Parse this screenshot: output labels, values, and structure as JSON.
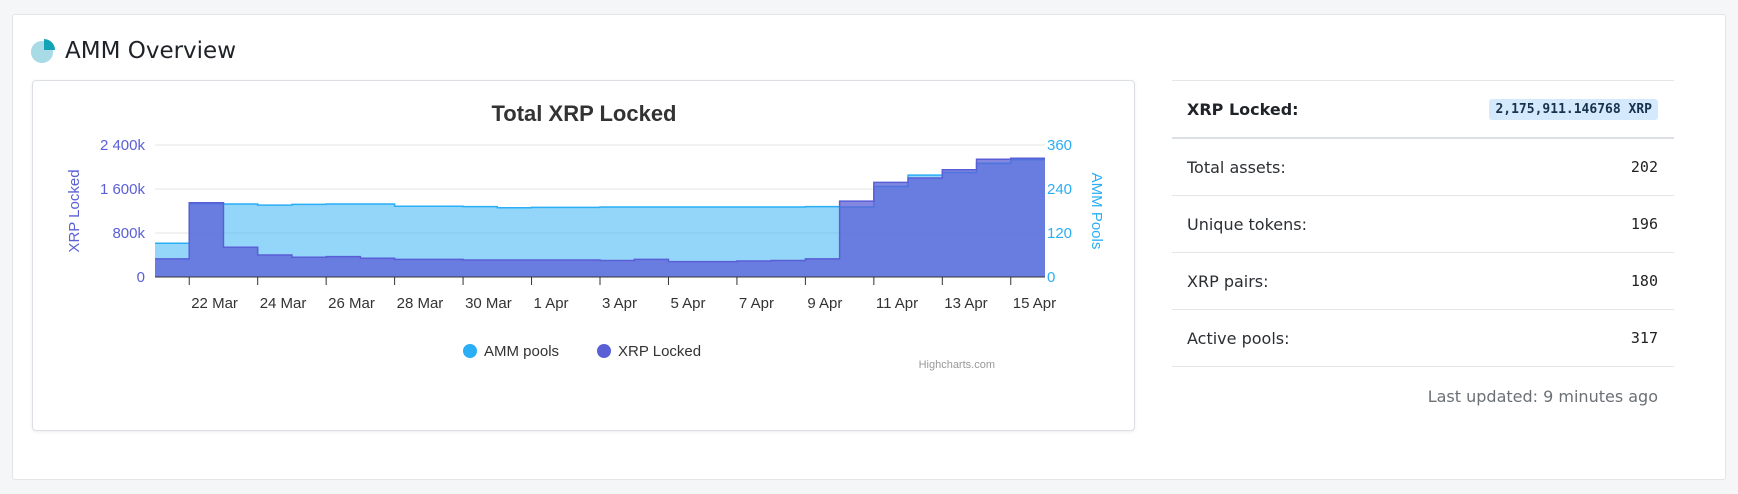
{
  "header": {
    "title": "AMM Overview",
    "icon": "pie-chart-icon"
  },
  "stats": [
    {
      "label": "XRP Locked:",
      "value": "2,175,911.146768 XRP",
      "highlight": true
    },
    {
      "label": "Total assets:",
      "value": "202"
    },
    {
      "label": "Unique tokens:",
      "value": "196"
    },
    {
      "label": "XRP pairs:",
      "value": "180"
    },
    {
      "label": "Active pools:",
      "value": "317"
    }
  ],
  "last_updated": "Last updated: 9 minutes ago",
  "credits": "Highcharts.com",
  "colors": {
    "xrp_locked": "#5a5fd6",
    "amm_pools": "#2aaef5",
    "badge_bg": "#d4e9fb"
  },
  "chart_data": {
    "type": "area",
    "step": true,
    "title": "Total XRP Locked",
    "x": [
      "21 Mar",
      "22 Mar",
      "23 Mar",
      "24 Mar",
      "25 Mar",
      "26 Mar",
      "27 Mar",
      "28 Mar",
      "29 Mar",
      "30 Mar",
      "31 Mar",
      "1 Apr",
      "2 Apr",
      "3 Apr",
      "4 Apr",
      "5 Apr",
      "6 Apr",
      "7 Apr",
      "8 Apr",
      "9 Apr",
      "10 Apr",
      "11 Apr",
      "12 Apr",
      "13 Apr",
      "14 Apr",
      "15 Apr"
    ],
    "x_tick_labels": [
      "22 Mar",
      "24 Mar",
      "26 Mar",
      "28 Mar",
      "30 Mar",
      "1 Apr",
      "3 Apr",
      "5 Apr",
      "7 Apr",
      "9 Apr",
      "11 Apr",
      "13 Apr",
      "15 Apr"
    ],
    "y_axes": [
      {
        "label": "XRP Locked",
        "ticks": [
          "0",
          "800k",
          "1 600k",
          "2 400k"
        ],
        "range": [
          0,
          2400000
        ],
        "color": "#5a5fd6",
        "position": "left"
      },
      {
        "label": "AMM Pools",
        "ticks": [
          "0",
          "120",
          "240",
          "360"
        ],
        "range": [
          0,
          360
        ],
        "color": "#2aaef5",
        "position": "right"
      }
    ],
    "series": [
      {
        "name": "AMM pools",
        "axis": 1,
        "color": "#2aaef5",
        "values": [
          92,
          200,
          199,
          196,
          198,
          199,
          199,
          193,
          193,
          192,
          189,
          190,
          190,
          191,
          191,
          191,
          191,
          191,
          191,
          192,
          191,
          247,
          278,
          285,
          310,
          320
        ]
      },
      {
        "name": "XRP Locked",
        "axis": 0,
        "color": "#5a5fd6",
        "values": [
          330000,
          1350000,
          540000,
          400000,
          360000,
          370000,
          340000,
          320000,
          320000,
          310000,
          310000,
          310000,
          310000,
          300000,
          320000,
          280000,
          280000,
          290000,
          300000,
          330000,
          1380000,
          1720000,
          1800000,
          1950000,
          2140000,
          2160000
        ]
      }
    ],
    "legend": {
      "position": "bottom-center"
    },
    "grid": true
  }
}
